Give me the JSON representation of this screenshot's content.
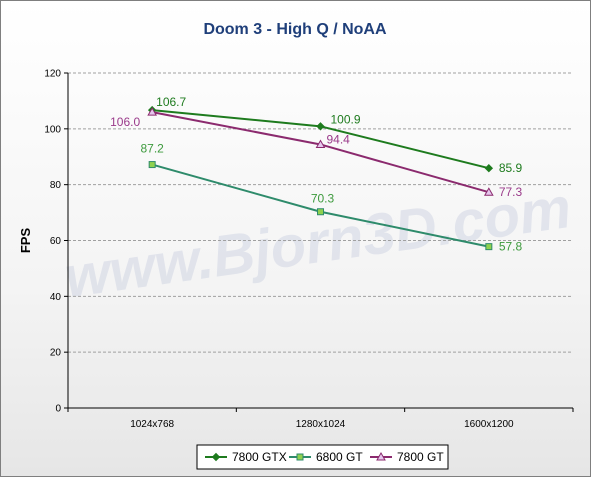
{
  "chart_data": {
    "type": "line",
    "title": "Doom 3 - High Q / NoAA",
    "xlabel": "",
    "ylabel": "FPS",
    "categories": [
      "1024x768",
      "1280x1024",
      "1600x1200"
    ],
    "ylim": [
      0,
      120
    ],
    "yticks": [
      0,
      20,
      40,
      60,
      80,
      100,
      120
    ],
    "grid": "horizontal dashed",
    "legend_position": "bottom",
    "watermark": "www.Bjorn3D.com",
    "series": [
      {
        "name": "7800 GTX",
        "values": [
          106.7,
          100.9,
          85.9
        ],
        "labels": [
          "106.7",
          "100.9",
          "85.9"
        ],
        "color": "#1e7b1e",
        "marker": "diamond"
      },
      {
        "name": "6800 GT",
        "values": [
          87.2,
          70.3,
          57.8
        ],
        "labels": [
          "87.2",
          "70.3",
          "57.8"
        ],
        "color": "#2e8b6b",
        "marker": "square",
        "marker_fill": "#8fd14f",
        "label_color": "#3d9a3d"
      },
      {
        "name": "7800 GT",
        "values": [
          106.0,
          94.4,
          77.3
        ],
        "labels": [
          "106.0",
          "94.4",
          "77.3"
        ],
        "color": "#8b2a6e",
        "marker": "triangle",
        "marker_fill": "#e6c7ee",
        "label_color": "#9a3a8a"
      }
    ]
  }
}
